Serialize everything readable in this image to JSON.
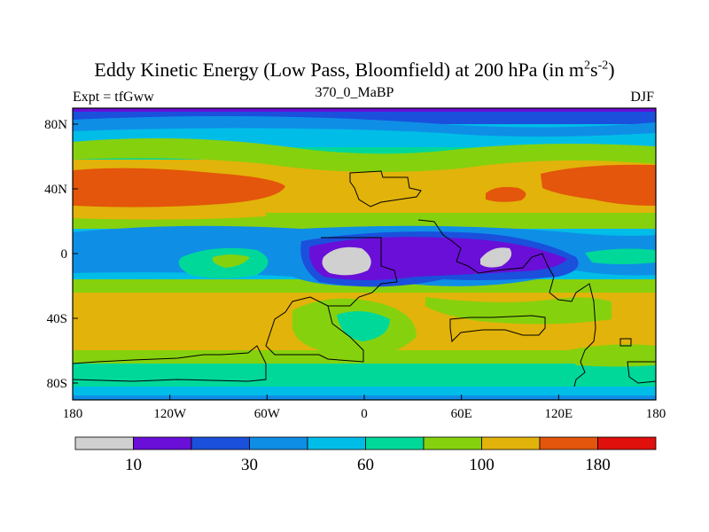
{
  "chart_data": {
    "type": "heatmap",
    "title_main": "Eddy Kinetic Energy (Low Pass, Bloomfield) at 200 hPa (in m",
    "title_sup1": "2",
    "title_mid": "s",
    "title_sup2": "-2",
    "title_end": ")",
    "left_label": "Expt = tfGww",
    "center_label": "370_0_MaBP",
    "right_label": "DJF",
    "x_ticks": [
      "180",
      "120W",
      "60W",
      "0",
      "60E",
      "120E",
      "180"
    ],
    "y_ticks": [
      "80N",
      "40N",
      "0",
      "40S",
      "80S"
    ],
    "xlim": [
      -180,
      180
    ],
    "ylim": [
      -90,
      90
    ],
    "colorbar": {
      "colors": [
        "#d0d0d0",
        "#6a0fd8",
        "#1a50dc",
        "#0f8ee6",
        "#00bde8",
        "#00d89a",
        "#86d10e",
        "#e2b30a",
        "#e3560b",
        "#e0100c"
      ],
      "labels": [
        "10",
        "30",
        "60",
        "100",
        "180"
      ]
    }
  }
}
